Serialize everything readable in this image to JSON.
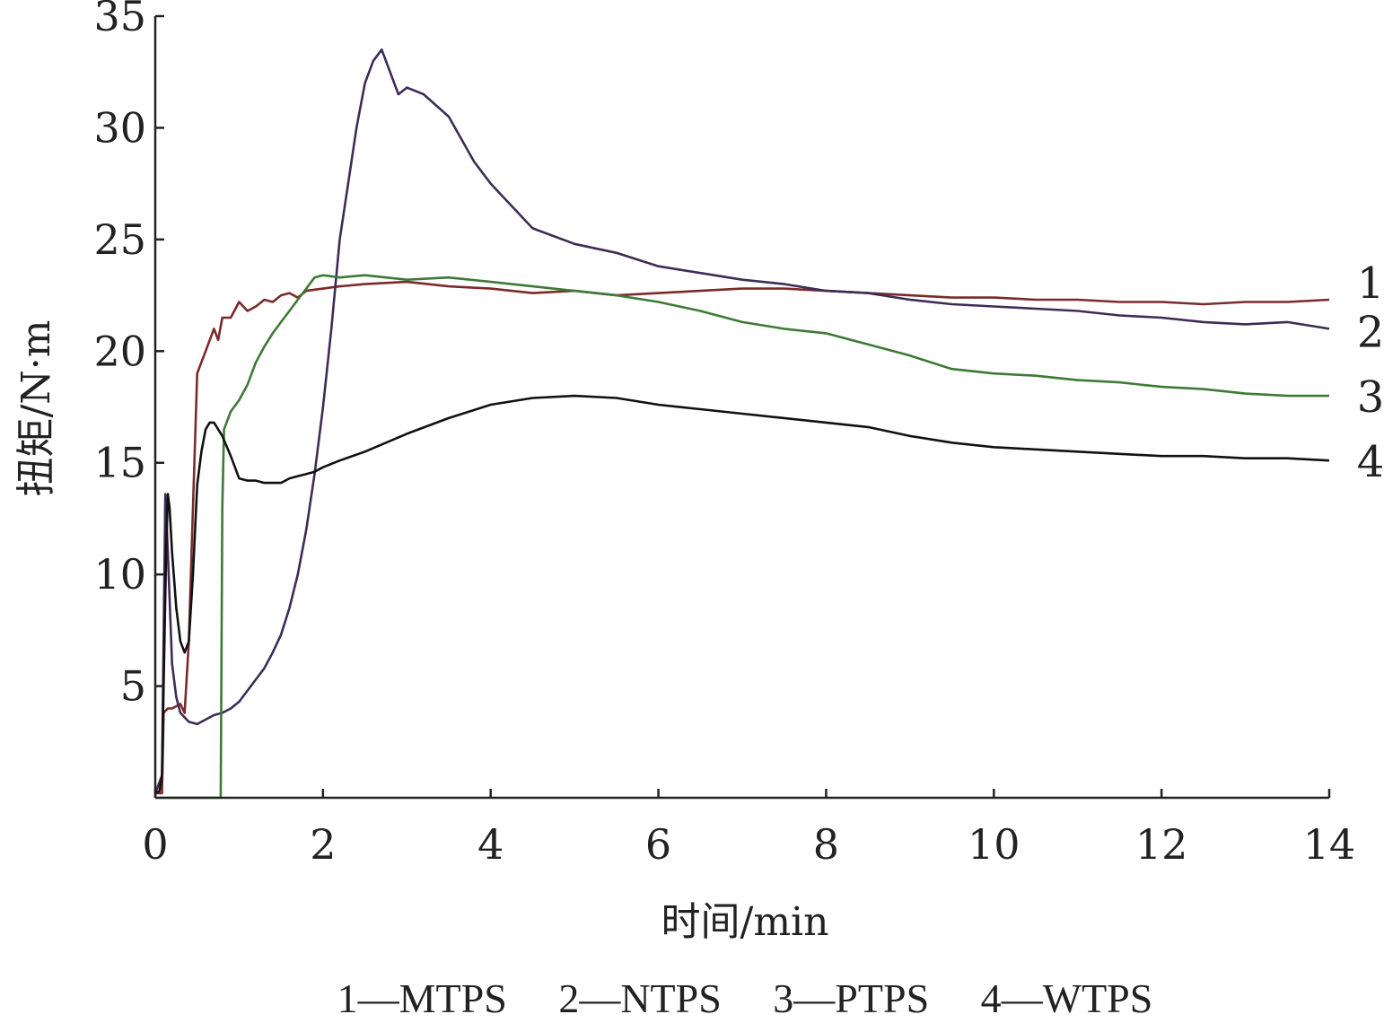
{
  "chart_data": {
    "type": "line",
    "xlabel": "时间/min",
    "ylabel": "扭矩/N·m",
    "xlim": [
      0,
      14
    ],
    "ylim": [
      0,
      35
    ],
    "xticks": [
      0,
      2,
      4,
      6,
      8,
      10,
      12,
      14
    ],
    "yticks": [
      5,
      10,
      15,
      20,
      25,
      30,
      35
    ],
    "x_tick_labels": [
      "0",
      "2",
      "4",
      "6",
      "8",
      "10",
      "12",
      "14"
    ],
    "y_tick_labels": [
      "5",
      "10",
      "15",
      "20",
      "25",
      "30",
      "35"
    ],
    "grid": false,
    "legend_text": "1—MTPS　 2—NTPS　 3—PTPS　 4—WTPS",
    "series": [
      {
        "name": "MTPS",
        "end_label": "1",
        "color": "#7b2a2a",
        "x": [
          0,
          0.08,
          0.1,
          0.15,
          0.2,
          0.3,
          0.35,
          0.4,
          0.45,
          0.5,
          0.55,
          0.6,
          0.7,
          0.75,
          0.8,
          0.9,
          1.0,
          1.1,
          1.2,
          1.3,
          1.4,
          1.5,
          1.6,
          1.7,
          1.8,
          2.0,
          2.2,
          2.5,
          3.0,
          3.5,
          4.0,
          4.5,
          5.0,
          5.5,
          6.0,
          6.5,
          7.0,
          7.5,
          8.0,
          8.5,
          9.0,
          9.5,
          10.0,
          10.5,
          11.0,
          11.5,
          12.0,
          12.5,
          13.0,
          13.5,
          14.0
        ],
        "y": [
          0.2,
          0.2,
          3.8,
          4.0,
          4.0,
          4.2,
          3.8,
          7.0,
          13.0,
          19.0,
          19.5,
          20.0,
          21.0,
          20.5,
          21.5,
          21.5,
          22.2,
          21.8,
          22.0,
          22.3,
          22.2,
          22.5,
          22.6,
          22.4,
          22.7,
          22.8,
          22.9,
          23.0,
          23.1,
          22.9,
          22.8,
          22.6,
          22.7,
          22.5,
          22.6,
          22.7,
          22.8,
          22.8,
          22.7,
          22.6,
          22.5,
          22.4,
          22.4,
          22.3,
          22.3,
          22.2,
          22.2,
          22.1,
          22.2,
          22.2,
          22.3
        ]
      },
      {
        "name": "NTPS",
        "end_label": "2",
        "color": "#3d2c57",
        "x": [
          0,
          0.08,
          0.12,
          0.15,
          0.2,
          0.25,
          0.3,
          0.4,
          0.5,
          0.6,
          0.7,
          0.8,
          0.9,
          1.0,
          1.1,
          1.2,
          1.3,
          1.4,
          1.5,
          1.6,
          1.7,
          1.8,
          1.9,
          2.0,
          2.1,
          2.2,
          2.3,
          2.4,
          2.5,
          2.6,
          2.7,
          2.8,
          2.9,
          3.0,
          3.2,
          3.5,
          3.8,
          4.0,
          4.5,
          5.0,
          5.5,
          6.0,
          6.5,
          7.0,
          7.5,
          8.0,
          8.5,
          9.0,
          9.5,
          10.0,
          10.5,
          11.0,
          11.5,
          12.0,
          12.5,
          13.0,
          13.5,
          14.0
        ],
        "y": [
          0.2,
          1.0,
          13.6,
          11.0,
          6.0,
          4.5,
          3.8,
          3.4,
          3.3,
          3.5,
          3.7,
          3.8,
          4.0,
          4.3,
          4.8,
          5.3,
          5.8,
          6.5,
          7.3,
          8.5,
          10.0,
          12.0,
          14.5,
          17.5,
          21.0,
          25.0,
          27.5,
          30.0,
          32.0,
          33.0,
          33.5,
          32.5,
          31.5,
          31.8,
          31.5,
          30.5,
          28.5,
          27.5,
          25.5,
          24.8,
          24.4,
          23.8,
          23.5,
          23.2,
          23.0,
          22.7,
          22.6,
          22.3,
          22.1,
          22.0,
          21.9,
          21.8,
          21.6,
          21.5,
          21.3,
          21.2,
          21.3,
          21.0
        ]
      },
      {
        "name": "PTPS",
        "end_label": "3",
        "color": "#3d7a35",
        "x": [
          0,
          0.78,
          0.8,
          0.82,
          0.9,
          1.0,
          1.1,
          1.2,
          1.3,
          1.4,
          1.5,
          1.6,
          1.7,
          1.8,
          1.9,
          2.0,
          2.2,
          2.5,
          3.0,
          3.5,
          4.0,
          4.5,
          5.0,
          5.5,
          6.0,
          6.5,
          7.0,
          7.5,
          8.0,
          8.5,
          9.0,
          9.5,
          10.0,
          10.5,
          11.0,
          11.5,
          12.0,
          12.5,
          13.0,
          13.5,
          14.0
        ],
        "y": [
          0,
          0,
          13.0,
          16.5,
          17.3,
          17.8,
          18.5,
          19.5,
          20.2,
          20.8,
          21.3,
          21.8,
          22.3,
          22.8,
          23.3,
          23.4,
          23.3,
          23.4,
          23.2,
          23.3,
          23.1,
          22.9,
          22.7,
          22.5,
          22.2,
          21.8,
          21.3,
          21.0,
          20.8,
          20.3,
          19.8,
          19.2,
          19.0,
          18.9,
          18.7,
          18.6,
          18.4,
          18.3,
          18.1,
          18.0,
          18.0
        ]
      },
      {
        "name": "WTPS",
        "end_label": "4",
        "color": "#111111",
        "x": [
          0,
          0.05,
          0.08,
          0.1,
          0.13,
          0.15,
          0.17,
          0.2,
          0.25,
          0.3,
          0.35,
          0.4,
          0.45,
          0.5,
          0.55,
          0.6,
          0.65,
          0.7,
          0.75,
          0.8,
          0.9,
          1.0,
          1.1,
          1.2,
          1.3,
          1.4,
          1.5,
          1.6,
          1.7,
          1.8,
          1.9,
          2.0,
          2.2,
          2.5,
          3.0,
          3.5,
          4.0,
          4.5,
          5.0,
          5.5,
          6.0,
          6.5,
          7.0,
          7.5,
          8.0,
          8.5,
          9.0,
          9.5,
          10.0,
          10.5,
          11.0,
          11.5,
          12.0,
          12.5,
          13.0,
          13.5,
          14.0
        ],
        "y": [
          0.2,
          0.3,
          1.0,
          5.0,
          11.0,
          13.6,
          13.0,
          11.0,
          8.5,
          7.0,
          6.5,
          7.0,
          10.0,
          14.0,
          15.5,
          16.5,
          16.8,
          16.8,
          16.5,
          16.2,
          15.3,
          14.3,
          14.2,
          14.2,
          14.1,
          14.1,
          14.1,
          14.3,
          14.4,
          14.5,
          14.6,
          14.8,
          15.1,
          15.5,
          16.3,
          17.0,
          17.6,
          17.9,
          18.0,
          17.9,
          17.6,
          17.4,
          17.2,
          17.0,
          16.8,
          16.6,
          16.2,
          15.9,
          15.7,
          15.6,
          15.5,
          15.4,
          15.3,
          15.3,
          15.2,
          15.2,
          15.1
        ]
      }
    ]
  }
}
